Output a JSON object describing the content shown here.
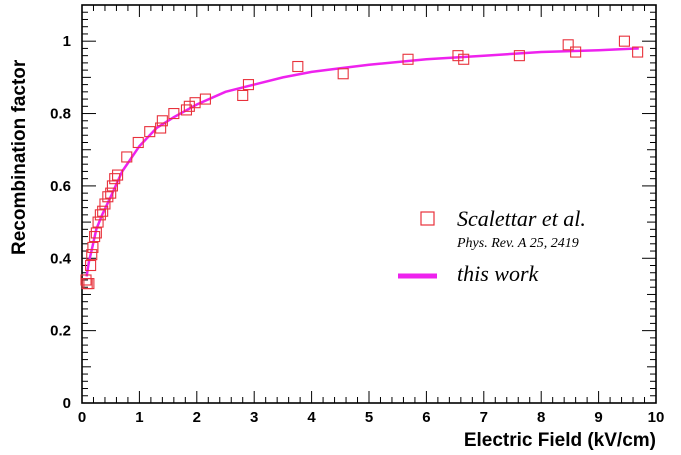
{
  "chart_data": {
    "type": "scatter",
    "xlabel": "Electric Field (kV/cm)",
    "ylabel": "Recombination factor",
    "xlim": [
      0,
      10
    ],
    "ylim": [
      0,
      1.1
    ],
    "x_ticks": [
      0,
      1,
      2,
      3,
      4,
      5,
      6,
      7,
      8,
      9,
      10
    ],
    "y_ticks": [
      0,
      0.2,
      0.4,
      0.6,
      0.8,
      1
    ],
    "x_tick_labels": [
      "0",
      "1",
      "2",
      "3",
      "4",
      "5",
      "6",
      "7",
      "8",
      "9",
      "10"
    ],
    "y_tick_labels": [
      "0",
      "0.2",
      "0.4",
      "0.6",
      "0.8",
      "1"
    ],
    "grid": false,
    "legend_position": "right",
    "series": [
      {
        "name": "Scalettar et al.",
        "subtitle": "Phys. Rev. A 25, 2419",
        "marker": "open-square",
        "color": "#e8313b",
        "points": [
          [
            0.07,
            0.34
          ],
          [
            0.09,
            0.33
          ],
          [
            0.12,
            0.33
          ],
          [
            0.15,
            0.38
          ],
          [
            0.17,
            0.41
          ],
          [
            0.19,
            0.43
          ],
          [
            0.22,
            0.46
          ],
          [
            0.25,
            0.47
          ],
          [
            0.28,
            0.5
          ],
          [
            0.32,
            0.52
          ],
          [
            0.36,
            0.53
          ],
          [
            0.4,
            0.55
          ],
          [
            0.45,
            0.57
          ],
          [
            0.5,
            0.58
          ],
          [
            0.53,
            0.6
          ],
          [
            0.57,
            0.62
          ],
          [
            0.62,
            0.63
          ],
          [
            0.78,
            0.68
          ],
          [
            0.98,
            0.72
          ],
          [
            1.18,
            0.75
          ],
          [
            1.37,
            0.76
          ],
          [
            1.4,
            0.78
          ],
          [
            1.6,
            0.8
          ],
          [
            1.82,
            0.81
          ],
          [
            1.87,
            0.82
          ],
          [
            1.97,
            0.83
          ],
          [
            2.15,
            0.84
          ],
          [
            2.8,
            0.85
          ],
          [
            2.9,
            0.88
          ],
          [
            3.76,
            0.93
          ],
          [
            4.55,
            0.91
          ],
          [
            5.68,
            0.95
          ],
          [
            6.55,
            0.96
          ],
          [
            6.65,
            0.95
          ],
          [
            7.62,
            0.96
          ],
          [
            8.47,
            0.99
          ],
          [
            8.6,
            0.97
          ],
          [
            9.45,
            1.0
          ],
          [
            9.68,
            0.97
          ]
        ]
      },
      {
        "name": "this work",
        "type": "line",
        "color": "#ee22ee",
        "points": [
          [
            0.08,
            0.35
          ],
          [
            0.12,
            0.39
          ],
          [
            0.18,
            0.43
          ],
          [
            0.25,
            0.48
          ],
          [
            0.35,
            0.52
          ],
          [
            0.5,
            0.57
          ],
          [
            0.7,
            0.64
          ],
          [
            1.0,
            0.71
          ],
          [
            1.3,
            0.76
          ],
          [
            1.6,
            0.79
          ],
          [
            2.0,
            0.825
          ],
          [
            2.5,
            0.86
          ],
          [
            3.0,
            0.88
          ],
          [
            3.5,
            0.9
          ],
          [
            4.0,
            0.915
          ],
          [
            4.5,
            0.925
          ],
          [
            5.0,
            0.935
          ],
          [
            6.0,
            0.95
          ],
          [
            7.0,
            0.96
          ],
          [
            8.0,
            0.97
          ],
          [
            9.0,
            0.975
          ],
          [
            9.7,
            0.98
          ]
        ]
      }
    ]
  }
}
